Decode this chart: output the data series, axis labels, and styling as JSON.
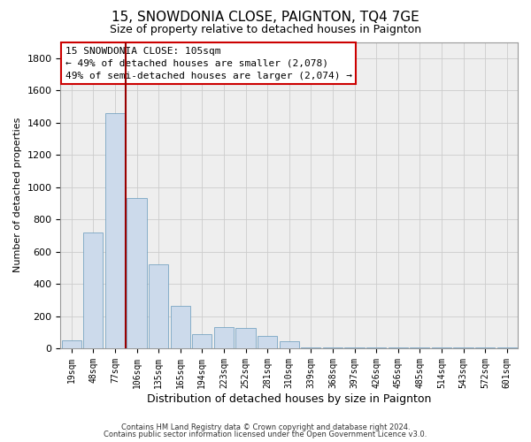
{
  "title": "15, SNOWDONIA CLOSE, PAIGNTON, TQ4 7GE",
  "subtitle": "Size of property relative to detached houses in Paignton",
  "xlabel": "Distribution of detached houses by size in Paignton",
  "ylabel": "Number of detached properties",
  "footer1": "Contains HM Land Registry data © Crown copyright and database right 2024.",
  "footer2": "Contains public sector information licensed under the Open Government Licence v3.0.",
  "annotation_title": "15 SNOWDONIA CLOSE: 105sqm",
  "annotation_line1": "← 49% of detached houses are smaller (2,078)",
  "annotation_line2": "49% of semi-detached houses are larger (2,074) →",
  "bar_color": "#ccdaeb",
  "bar_edge_color": "#6699bb",
  "vline_color": "#990000",
  "vline_x": 2.5,
  "categories": [
    "19sqm",
    "48sqm",
    "77sqm",
    "106sqm",
    "135sqm",
    "165sqm",
    "194sqm",
    "223sqm",
    "252sqm",
    "281sqm",
    "310sqm",
    "339sqm",
    "368sqm",
    "397sqm",
    "426sqm",
    "456sqm",
    "485sqm",
    "514sqm",
    "543sqm",
    "572sqm",
    "601sqm"
  ],
  "values": [
    50,
    720,
    1460,
    930,
    520,
    265,
    90,
    130,
    125,
    75,
    45,
    8,
    8,
    8,
    3,
    3,
    3,
    3,
    3,
    3,
    3
  ],
  "ylim": [
    0,
    1900
  ],
  "yticks": [
    0,
    200,
    400,
    600,
    800,
    1000,
    1200,
    1400,
    1600,
    1800
  ],
  "grid_color": "#cccccc",
  "background_color": "#eeeeee",
  "title_fontsize": 11,
  "subtitle_fontsize": 9,
  "annotation_fontsize": 8,
  "ylabel_fontsize": 8,
  "xlabel_fontsize": 9,
  "tick_fontsize": 7,
  "footer_fontsize": 6
}
